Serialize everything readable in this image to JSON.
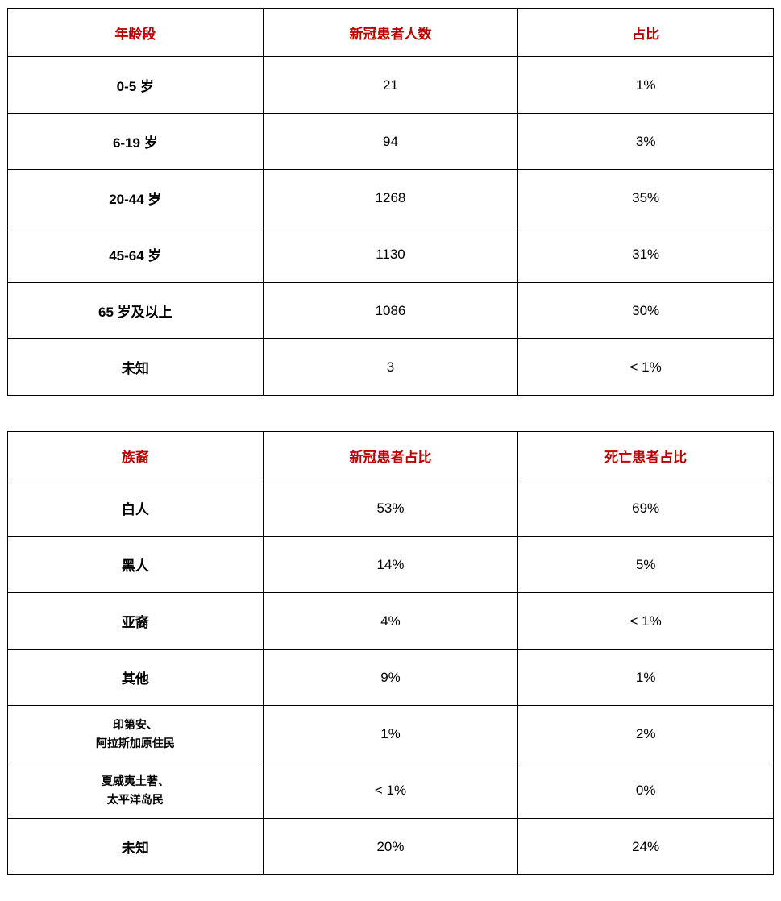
{
  "accent_color": "#c00000",
  "age_table": {
    "headers": [
      "年龄段",
      "新冠患者人数",
      "占比"
    ],
    "rows": [
      [
        "0-5 岁",
        "21",
        "1%"
      ],
      [
        "6-19 岁",
        "94",
        "3%"
      ],
      [
        "20-44 岁",
        "1268",
        "35%"
      ],
      [
        "45-64 岁",
        "1130",
        "31%"
      ],
      [
        "65 岁及以上",
        "1086",
        "30%"
      ],
      [
        "未知",
        "3",
        "< 1%"
      ]
    ]
  },
  "ethnicity_table": {
    "headers": [
      "族裔",
      "新冠患者占比",
      "死亡患者占比"
    ],
    "rows": [
      [
        "白人",
        "53%",
        "69%"
      ],
      [
        "黑人",
        "14%",
        "5%"
      ],
      [
        "亚裔",
        "4%",
        "< 1%"
      ],
      [
        "其他",
        "9%",
        "1%"
      ],
      [
        "印第安、\n阿拉斯加原住民",
        "1%",
        "2%"
      ],
      [
        "夏威夷土著、\n太平洋岛民",
        "< 1%",
        "0%"
      ],
      [
        "未知",
        "20%",
        "24%"
      ]
    ]
  }
}
